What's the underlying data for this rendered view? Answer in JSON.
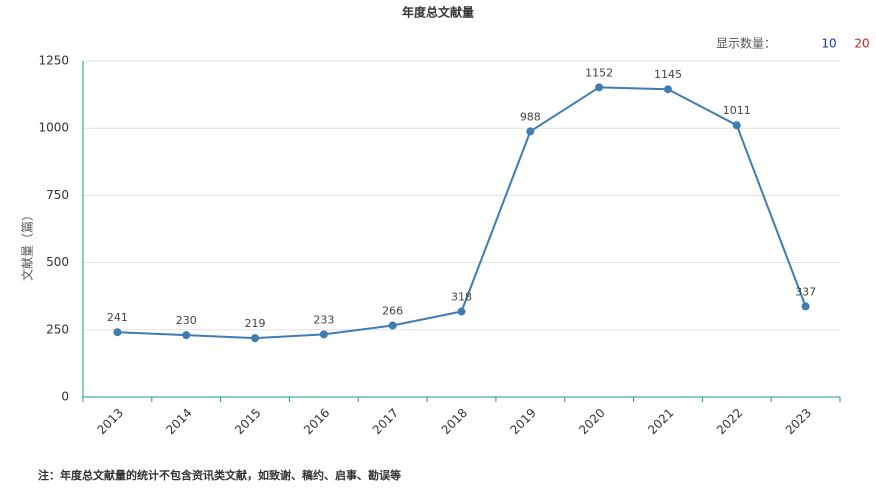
{
  "chart_data": {
    "type": "line",
    "title": "年度总文献量",
    "y_label": "文献量（篇）",
    "categories": [
      "2013",
      "2014",
      "2015",
      "2016",
      "2017",
      "2018",
      "2019",
      "2020",
      "2021",
      "2022",
      "2023"
    ],
    "values": [
      241,
      230,
      219,
      233,
      266,
      318,
      988,
      1152,
      1145,
      1011,
      337
    ],
    "color": "#3f7cb4",
    "ylim": [
      0,
      1250
    ],
    "yticks": [
      0,
      250,
      500,
      750,
      1000,
      1250
    ],
    "grid": true,
    "data_labels": true
  },
  "controls": {
    "label": "显示数量：",
    "options": [
      "10",
      "20"
    ]
  },
  "footnote": "注：年度总文献量的统计不包含资讯类文献，如致谢、稿约、启事、勘误等"
}
